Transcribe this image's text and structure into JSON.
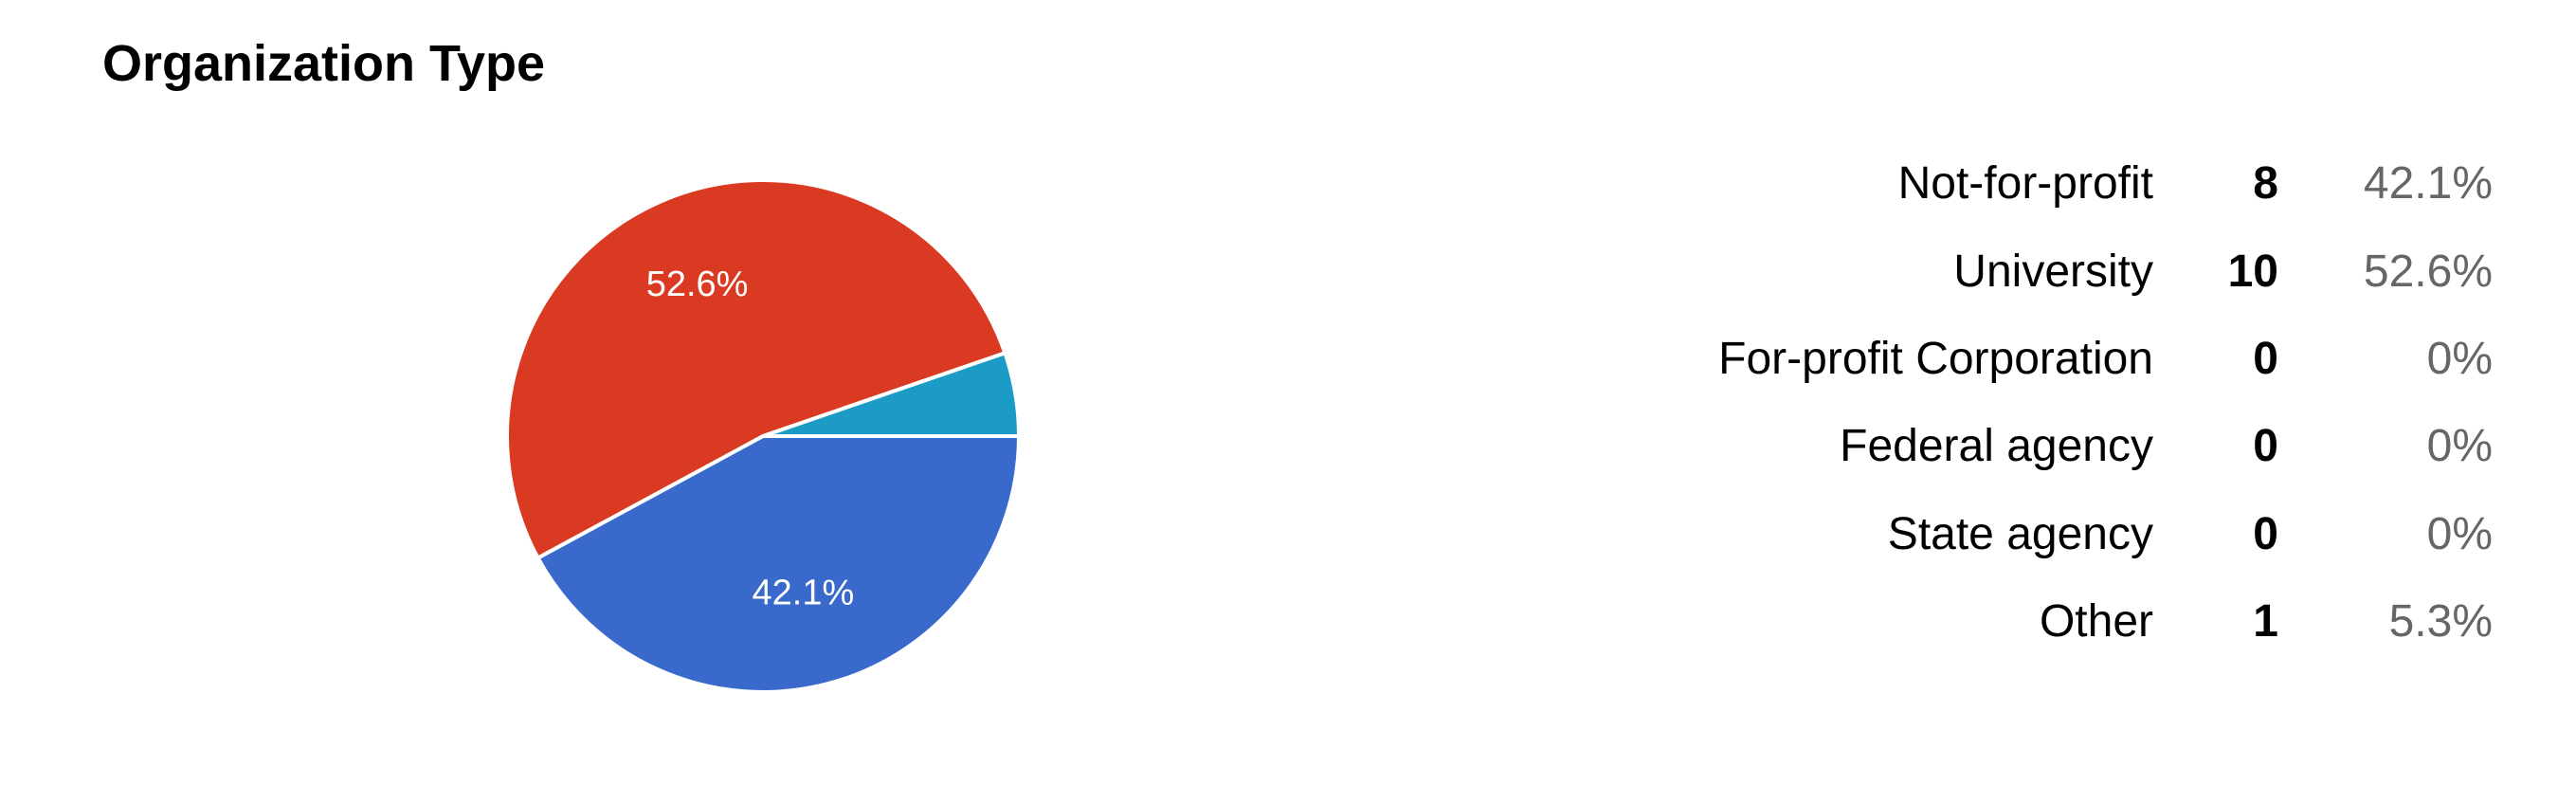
{
  "chart_data": {
    "type": "pie",
    "title": "Organization Type",
    "categories": [
      "Not-for-profit",
      "University",
      "For-profit Corporation",
      "Federal agency",
      "State agency",
      "Other"
    ],
    "values": [
      8,
      10,
      0,
      0,
      0,
      1
    ],
    "percent_labels": [
      "42.1%",
      "52.6%",
      "0%",
      "0%",
      "0%",
      "5.3%"
    ],
    "colors": [
      "#3869cb",
      "#da3a22",
      "#f69a1c",
      "#199a4a",
      "#9a1f9a",
      "#1b9bc6"
    ],
    "slice_labels_shown": [
      "42.1%",
      "52.6%"
    ],
    "legend": "right"
  }
}
